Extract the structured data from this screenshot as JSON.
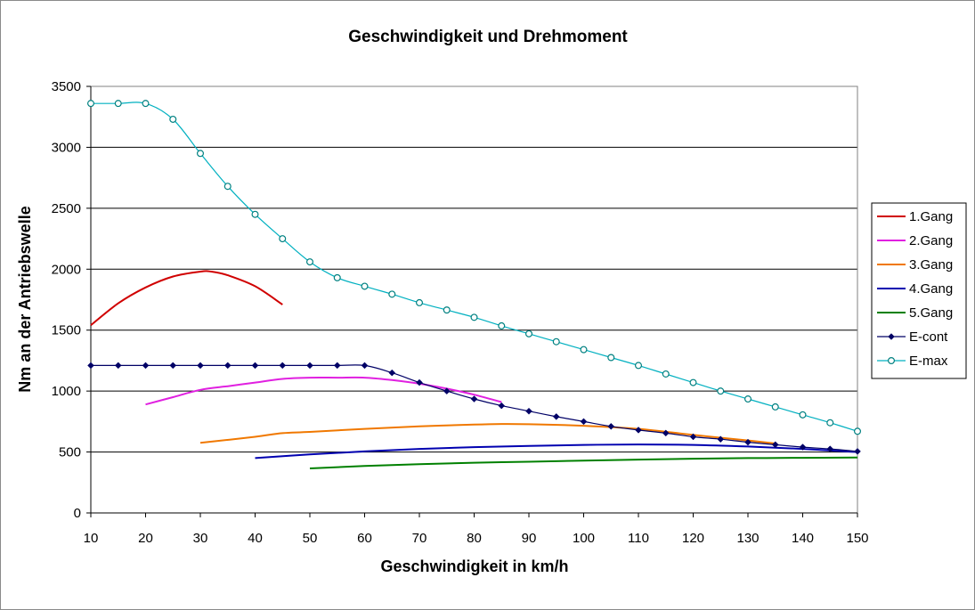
{
  "chart_data": {
    "type": "line",
    "title": "Geschwindigkeit und Drehmoment",
    "xlabel": "Geschwindigkeit in km/h",
    "ylabel": "Nm an der Antriebswelle",
    "xlim": [
      10,
      150
    ],
    "ylim": [
      0,
      3500
    ],
    "x_ticks": [
      10,
      20,
      30,
      40,
      50,
      60,
      70,
      80,
      90,
      100,
      110,
      120,
      130,
      140,
      150
    ],
    "y_ticks": [
      0,
      500,
      1000,
      1500,
      2000,
      2500,
      3000,
      3500
    ],
    "grid": "horizontal",
    "legend_position": "right",
    "series": [
      {
        "name": "1.Gang",
        "color": "#d00000",
        "marker": "none",
        "x": [
          10,
          15,
          20,
          25,
          30,
          32,
          35,
          40,
          45
        ],
        "y": [
          1540,
          1720,
          1850,
          1940,
          1980,
          1980,
          1950,
          1860,
          1710
        ]
      },
      {
        "name": "2.Gang",
        "color": "#e020e0",
        "marker": "none",
        "x": [
          20,
          25,
          30,
          35,
          40,
          45,
          50,
          55,
          60,
          65,
          70,
          75,
          80,
          85
        ],
        "y": [
          890,
          950,
          1010,
          1040,
          1070,
          1100,
          1110,
          1110,
          1110,
          1090,
          1060,
          1020,
          970,
          910
        ]
      },
      {
        "name": "3.Gang",
        "color": "#f07800",
        "marker": "none",
        "x": [
          30,
          40,
          45,
          50,
          60,
          70,
          80,
          85,
          90,
          100,
          110,
          120,
          130,
          135
        ],
        "y": [
          575,
          625,
          655,
          665,
          690,
          710,
          725,
          730,
          728,
          715,
          690,
          640,
          595,
          570
        ]
      },
      {
        "name": "4.Gang",
        "color": "#0000b0",
        "marker": "none",
        "x": [
          40,
          50,
          60,
          70,
          80,
          90,
          100,
          110,
          120,
          130,
          140,
          150
        ],
        "y": [
          450,
          480,
          505,
          525,
          540,
          550,
          558,
          562,
          558,
          545,
          525,
          500
        ]
      },
      {
        "name": "5.Gang",
        "color": "#008000",
        "marker": "none",
        "x": [
          50,
          60,
          70,
          80,
          90,
          100,
          110,
          120,
          130,
          140,
          150
        ],
        "y": [
          365,
          385,
          400,
          412,
          420,
          430,
          438,
          445,
          450,
          452,
          455
        ]
      },
      {
        "name": "E-cont",
        "color": "#000066",
        "marker": "diamond",
        "x": [
          10,
          15,
          20,
          25,
          30,
          35,
          40,
          45,
          50,
          55,
          60,
          65,
          70,
          75,
          80,
          85,
          90,
          95,
          100,
          105,
          110,
          115,
          120,
          125,
          130,
          135,
          140,
          145,
          150
        ],
        "y": [
          1210,
          1210,
          1210,
          1210,
          1210,
          1210,
          1210,
          1210,
          1210,
          1210,
          1210,
          1150,
          1070,
          1000,
          935,
          880,
          835,
          790,
          750,
          710,
          680,
          655,
          625,
          605,
          580,
          560,
          540,
          525,
          505
        ]
      },
      {
        "name": "E-max",
        "color": "#00b0c0",
        "marker": "circle",
        "x": [
          10,
          15,
          20,
          25,
          30,
          35,
          40,
          45,
          50,
          55,
          60,
          65,
          70,
          75,
          80,
          85,
          90,
          95,
          100,
          105,
          110,
          115,
          120,
          125,
          130,
          135,
          140,
          145,
          150
        ],
        "y": [
          3360,
          3360,
          3360,
          3230,
          2950,
          2680,
          2450,
          2250,
          2060,
          1930,
          1860,
          1795,
          1725,
          1665,
          1605,
          1535,
          1470,
          1405,
          1340,
          1275,
          1210,
          1140,
          1070,
          1000,
          935,
          870,
          805,
          740,
          670
        ]
      }
    ]
  }
}
